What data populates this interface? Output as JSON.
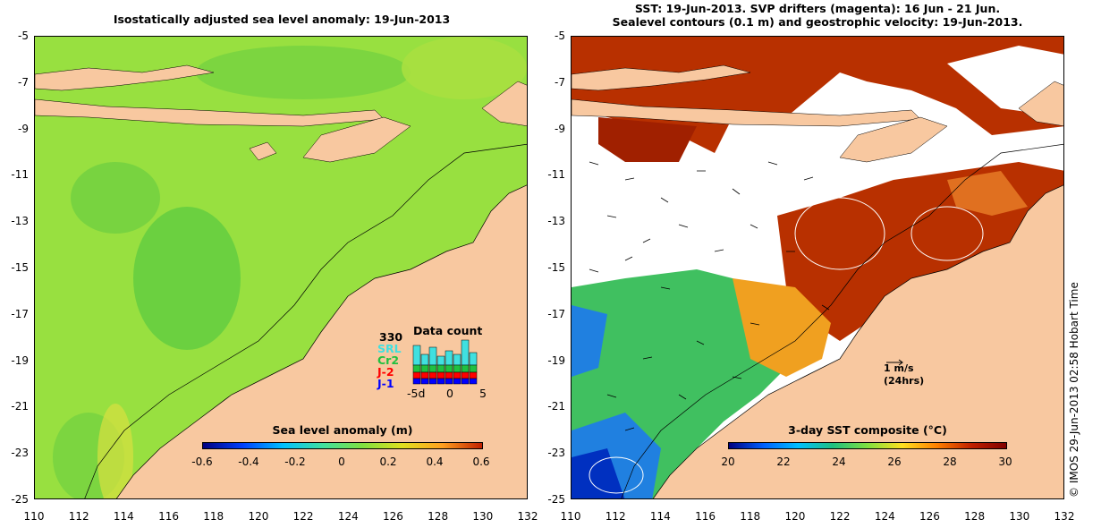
{
  "left_panel": {
    "title": "Isostatically adjusted sea level anomaly: 19-Jun-2013",
    "colorbar": {
      "label": "Sea level anomaly (m)",
      "ticks": [
        "-0.6",
        "-0.4",
        "-0.2",
        "0",
        "0.2",
        "0.4",
        "0.6"
      ],
      "range": [
        -0.6,
        0.6
      ],
      "colors": [
        "#000080",
        "#0040ff",
        "#00c0ff",
        "#40e0a0",
        "#80e040",
        "#e0e020",
        "#ffa020",
        "#c02000"
      ]
    },
    "data_count": {
      "title": "Data count",
      "count": "330",
      "satellites": [
        {
          "name": "SRL",
          "color": "#40e0e0"
        },
        {
          "name": "Cr2",
          "color": "#20c040"
        },
        {
          "name": "J-2",
          "color": "#ff0000"
        },
        {
          "name": "J-1",
          "color": "#0000ff"
        }
      ],
      "axis_labels": [
        "-5d",
        "0",
        "5"
      ]
    }
  },
  "right_panel": {
    "title_line1": "SST: 19-Jun-2013. SVP drifters (magenta): 16 Jun - 21 Jun.",
    "title_line2": "Sealevel contours (0.1 m) and geostrophic velocity: 19-Jun-2013.",
    "scale_label": "1 m/s",
    "scale_sub": "(24hrs)",
    "colorbar": {
      "label": "3-day SST composite (°C)",
      "ticks": [
        "20",
        "22",
        "24",
        "26",
        "28",
        "30"
      ],
      "range": [
        20,
        30
      ],
      "colors": [
        "#000080",
        "#0060ff",
        "#00c0ff",
        "#20c080",
        "#80e040",
        "#ffe020",
        "#ff8000",
        "#c02000",
        "#800000"
      ]
    }
  },
  "y_axis_labels": [
    "-5",
    "-7",
    "-9",
    "-11",
    "-13",
    "-15",
    "-17",
    "-19",
    "-21",
    "-23",
    "-25"
  ],
  "x_axis_labels": [
    "110",
    "112",
    "114",
    "116",
    "118",
    "120",
    "122",
    "124",
    "126",
    "128",
    "130",
    "132"
  ],
  "side_note": "© IMOS 29-Jun-2013 02:58 Hobart Time"
}
